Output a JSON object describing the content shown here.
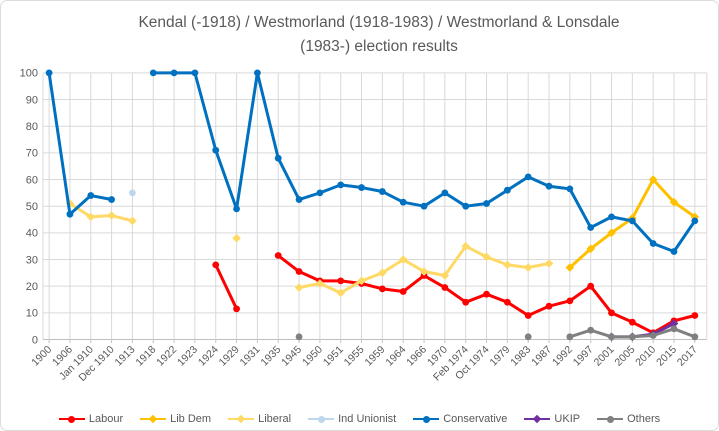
{
  "chart_data": {
    "type": "line",
    "title": "Kendal (-1918) / Westmorland (1918-1983) / Westmorland & Lonsdale (1983-) election results",
    "title_line1": "Kendal (-1918) / Westmorland (1918-1983) / Westmorland & Lonsdale",
    "title_line2": "(1983-) election results",
    "categories": [
      "1900",
      "1906",
      "Jan 1910",
      "Dec 1910",
      "1913",
      "1918",
      "1922",
      "1923",
      "1924",
      "1929",
      "1931",
      "1935",
      "1945",
      "1950",
      "1951",
      "1955",
      "1959",
      "1964",
      "1966",
      "1970",
      "Feb 1974",
      "Oct 1974",
      "1979",
      "1983",
      "1987",
      "1992",
      "1997",
      "2001",
      "2005",
      "2010",
      "2015",
      "2017"
    ],
    "ylabel": "",
    "xlabel": "",
    "ylim": [
      0,
      100
    ],
    "y_step": 10,
    "y_ticks": [
      "0",
      "10",
      "20",
      "30",
      "40",
      "50",
      "60",
      "70",
      "80",
      "90",
      "100"
    ],
    "grid": "on",
    "legend_position": "bottom",
    "series": [
      {
        "name": "Labour",
        "color": "#FF0000",
        "marker": "circle",
        "values": [
          null,
          null,
          null,
          null,
          null,
          null,
          null,
          null,
          28,
          11.5,
          null,
          31.5,
          25.5,
          22,
          22,
          21,
          19,
          18,
          24,
          19.5,
          14,
          17,
          14,
          9,
          12.5,
          14.5,
          20,
          10,
          6.5,
          2.5,
          7,
          9
        ]
      },
      {
        "name": "Lib Dem",
        "color": "#FFC000",
        "marker": "diamond",
        "values": [
          null,
          null,
          null,
          null,
          null,
          null,
          null,
          null,
          null,
          null,
          null,
          null,
          null,
          null,
          null,
          null,
          null,
          null,
          null,
          null,
          null,
          null,
          null,
          null,
          null,
          27,
          34,
          40,
          45.5,
          60,
          51.5,
          46
        ]
      },
      {
        "name": "Liberal",
        "color": "#FFD966",
        "marker": "diamond",
        "values": [
          null,
          51,
          46,
          46.5,
          44.5,
          null,
          null,
          null,
          null,
          38,
          null,
          null,
          19.5,
          21,
          17.5,
          22,
          25,
          30,
          25.5,
          24,
          35,
          31,
          28,
          27,
          28.5,
          null,
          null,
          null,
          null,
          null,
          null,
          null
        ]
      },
      {
        "name": "Ind Unionist",
        "color": "#BDD7EE",
        "marker": "circle",
        "values": [
          null,
          null,
          null,
          null,
          55,
          null,
          null,
          null,
          null,
          null,
          null,
          null,
          null,
          null,
          null,
          null,
          null,
          null,
          null,
          null,
          null,
          null,
          null,
          null,
          null,
          null,
          null,
          null,
          null,
          null,
          null,
          null
        ]
      },
      {
        "name": "Conservative",
        "color": "#0070C0",
        "marker": "circle",
        "values": [
          100,
          47,
          54,
          52.5,
          null,
          100,
          100,
          100,
          71,
          49,
          100,
          68,
          52.5,
          55,
          58,
          57,
          55.5,
          51.5,
          50,
          55,
          50,
          51,
          56,
          61,
          57.5,
          56.5,
          42,
          46,
          44.5,
          36,
          33,
          44.5
        ]
      },
      {
        "name": "UKIP",
        "color": "#7030A0",
        "marker": "diamond",
        "values": [
          null,
          null,
          null,
          null,
          null,
          null,
          null,
          null,
          null,
          null,
          null,
          null,
          null,
          null,
          null,
          null,
          null,
          null,
          null,
          null,
          null,
          null,
          null,
          null,
          null,
          null,
          null,
          1,
          1,
          2,
          6,
          null
        ]
      },
      {
        "name": "Others",
        "color": "#808080",
        "marker": "circle",
        "values": [
          null,
          null,
          null,
          null,
          null,
          null,
          null,
          null,
          null,
          null,
          null,
          null,
          1,
          null,
          null,
          null,
          null,
          null,
          null,
          null,
          null,
          null,
          null,
          1,
          null,
          1,
          3.5,
          1,
          1,
          1.5,
          4,
          1
        ]
      }
    ]
  }
}
